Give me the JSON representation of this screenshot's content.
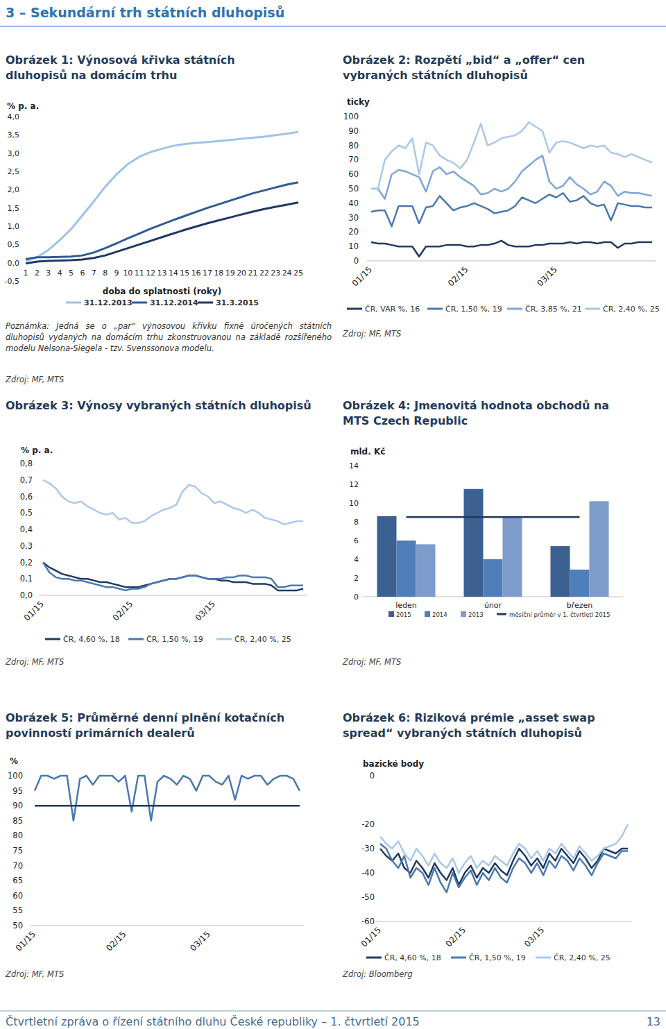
{
  "header": {
    "title": "3 – Sekundární trh státních dluhopisů"
  },
  "footer": {
    "text": "Čtvrtletní zpráva o řízení státního dluhu České republiky – 1. čtvrtletí 2015",
    "page": 13
  },
  "chart_data": [
    {
      "type": "line",
      "title": "Obrázek 1: Výnosová křivka státních\ndluhopisů na domácím trhu",
      "ylabel": "% p. a.",
      "xlabel": "doba do splatnosti (roky)",
      "note": "Poznámka: Jedná se o „par“ výnosovou křivku fixně úročených státních dluhopisů vydaných na domácím trhu zkonstruovanou na základě rozšířeného modelu Nelsona-Siegela - tzv. Svenssonova modelu.",
      "source": "Zdroj: MF, MTS",
      "x": [
        1,
        2,
        3,
        4,
        5,
        6,
        7,
        8,
        9,
        10,
        11,
        12,
        13,
        14,
        15,
        16,
        17,
        18,
        19,
        20,
        21,
        22,
        23,
        24,
        25
      ],
      "xlim": [
        1,
        25
      ],
      "xticks": [
        1,
        2,
        3,
        4,
        5,
        6,
        7,
        8,
        9,
        10,
        11,
        12,
        13,
        14,
        15,
        16,
        17,
        18,
        19,
        20,
        21,
        22,
        23,
        24,
        25
      ],
      "ylim": [
        -0.5,
        4
      ],
      "yticks": [
        {
          "value": -0.5,
          "label": "-0,5"
        },
        {
          "value": 0,
          "label": "0,0"
        },
        {
          "value": 0.5,
          "label": "0,5"
        },
        {
          "value": 1,
          "label": "1,0"
        },
        {
          "value": 1.5,
          "label": "1,5"
        },
        {
          "value": 2,
          "label": "2,0"
        },
        {
          "value": 2.5,
          "label": "2,5"
        },
        {
          "value": 3,
          "label": "3,0"
        },
        {
          "value": 3.5,
          "label": "3,5"
        },
        {
          "value": 4,
          "label": "4,0"
        }
      ],
      "grid": false,
      "legend": "bottom",
      "series": [
        {
          "name": "31.12.2013",
          "color": "#9dc3e6",
          "values": [
            0.05,
            0.15,
            0.35,
            0.62,
            0.92,
            1.3,
            1.68,
            2.08,
            2.42,
            2.7,
            2.9,
            3.03,
            3.12,
            3.2,
            3.25,
            3.28,
            3.3,
            3.33,
            3.36,
            3.39,
            3.42,
            3.45,
            3.49,
            3.53,
            3.58
          ]
        },
        {
          "name": "31.12.2014",
          "color": "#2e5b95",
          "values": [
            0.1,
            0.15,
            0.15,
            0.16,
            0.17,
            0.2,
            0.28,
            0.4,
            0.53,
            0.67,
            0.8,
            0.93,
            1.05,
            1.17,
            1.28,
            1.39,
            1.5,
            1.6,
            1.7,
            1.8,
            1.9,
            1.98,
            2.06,
            2.14,
            2.2
          ]
        },
        {
          "name": "31.3.2015",
          "color": "#1f3864",
          "values": [
            -0.02,
            0.03,
            0.05,
            0.06,
            0.07,
            0.09,
            0.13,
            0.2,
            0.3,
            0.4,
            0.5,
            0.6,
            0.7,
            0.8,
            0.9,
            0.99,
            1.08,
            1.16,
            1.24,
            1.32,
            1.4,
            1.47,
            1.53,
            1.59,
            1.65
          ]
        }
      ]
    },
    {
      "type": "line",
      "title": "Obrázek 2: Rozpětí „bid“ a „offer“ cen\nvybraných státních dluhopisů",
      "ylabel": "ticky",
      "source": "Zdroj: MF, MTS",
      "categories": [
        "01/15",
        null,
        null,
        null,
        null,
        null,
        null,
        null,
        null,
        null,
        null,
        null,
        null,
        null,
        "02/15",
        null,
        null,
        null,
        null,
        null,
        null,
        null,
        null,
        null,
        null,
        null,
        null,
        "03/15",
        null,
        null,
        null,
        null,
        null,
        null,
        null,
        null,
        null,
        null,
        null,
        null,
        null,
        null
      ],
      "ylim": [
        0,
        100
      ],
      "yticks": [
        0,
        10,
        20,
        30,
        40,
        50,
        60,
        70,
        80,
        90,
        100
      ],
      "grid": false,
      "legend": "bottom",
      "series": [
        {
          "name": "ČR, VAR %, 16",
          "color": "#1f3a60",
          "values": [
            13,
            12,
            12,
            11,
            10,
            10,
            10,
            3,
            10,
            10,
            10,
            11,
            11,
            11,
            10,
            10,
            11,
            11,
            12,
            14,
            11,
            10,
            10,
            10,
            11,
            11,
            12,
            12,
            12,
            13,
            12,
            13,
            13,
            12,
            13,
            13,
            9,
            12,
            12,
            13,
            13,
            13
          ]
        },
        {
          "name": "ČR, 1,50 %, 19",
          "color": "#4a78b0",
          "values": [
            34,
            35,
            35,
            24,
            38,
            38,
            38,
            26,
            37,
            38,
            45,
            40,
            35,
            37,
            38,
            40,
            38,
            36,
            33,
            34,
            35,
            38,
            44,
            42,
            40,
            43,
            46,
            44,
            47,
            41,
            42,
            45,
            40,
            38,
            39,
            28,
            40,
            39,
            38,
            38,
            37,
            37
          ]
        },
        {
          "name": "ČR, 3,85 %, 21",
          "color": "#7fa6d6",
          "values": [
            50,
            50,
            43,
            60,
            63,
            62,
            60,
            58,
            48,
            62,
            65,
            60,
            62,
            58,
            55,
            52,
            46,
            47,
            50,
            48,
            50,
            55,
            62,
            66,
            70,
            73,
            55,
            50,
            52,
            58,
            53,
            50,
            46,
            48,
            55,
            52,
            45,
            48,
            47,
            47,
            46,
            45
          ]
        },
        {
          "name": "ČR, 2,40 %, 25",
          "color": "#a9c8ea",
          "values": [
            50,
            50,
            70,
            76,
            80,
            78,
            85,
            60,
            82,
            80,
            73,
            70,
            68,
            64,
            70,
            82,
            95,
            80,
            82,
            85,
            86,
            87,
            90,
            96,
            93,
            90,
            75,
            82,
            83,
            82,
            80,
            78,
            80,
            79,
            80,
            75,
            74,
            72,
            74,
            72,
            70,
            68
          ]
        }
      ]
    },
    {
      "type": "line",
      "title": "Obrázek 3: Výnosy vybraných státních dluhopisů",
      "ylabel": "% p. a.",
      "source": "Zdroj: MF, MTS",
      "categories": [
        "01/15",
        null,
        null,
        null,
        null,
        null,
        null,
        null,
        null,
        null,
        null,
        null,
        null,
        null,
        "02/15",
        null,
        null,
        null,
        null,
        null,
        null,
        null,
        null,
        null,
        null,
        null,
        null,
        "03/15",
        null,
        null,
        null,
        null,
        null,
        null,
        null,
        null,
        null,
        null,
        null,
        null,
        null,
        null
      ],
      "ylim": [
        0,
        0.8
      ],
      "yticks": [
        {
          "value": 0,
          "label": "0,0"
        },
        {
          "value": 0.1,
          "label": "0,1"
        },
        {
          "value": 0.2,
          "label": "0,2"
        },
        {
          "value": 0.3,
          "label": "0,3"
        },
        {
          "value": 0.4,
          "label": "0,4"
        },
        {
          "value": 0.5,
          "label": "0,5"
        },
        {
          "value": 0.6,
          "label": "0,6"
        },
        {
          "value": 0.7,
          "label": "0,7"
        },
        {
          "value": 0.8,
          "label": "0,8"
        }
      ],
      "grid": false,
      "legend": "bottom",
      "series": [
        {
          "name": "ČR, 4,60 %, 18",
          "color": "#1f3a60",
          "values": [
            0.2,
            0.17,
            0.15,
            0.13,
            0.12,
            0.11,
            0.1,
            0.1,
            0.09,
            0.08,
            0.08,
            0.07,
            0.06,
            0.05,
            0.05,
            0.05,
            0.06,
            0.07,
            0.08,
            0.09,
            0.1,
            0.1,
            0.11,
            0.12,
            0.12,
            0.11,
            0.1,
            0.1,
            0.09,
            0.09,
            0.08,
            0.08,
            0.08,
            0.07,
            0.07,
            0.07,
            0.06,
            0.03,
            0.03,
            0.03,
            0.03,
            0.04
          ]
        },
        {
          "name": "ČR, 1,50 %, 19",
          "color": "#4a78b0",
          "values": [
            0.2,
            0.14,
            0.11,
            0.1,
            0.1,
            0.09,
            0.09,
            0.08,
            0.07,
            0.06,
            0.05,
            0.05,
            0.04,
            0.03,
            0.04,
            0.04,
            0.05,
            0.07,
            0.08,
            0.09,
            0.1,
            0.1,
            0.11,
            0.12,
            0.12,
            0.11,
            0.1,
            0.1,
            0.1,
            0.11,
            0.11,
            0.12,
            0.12,
            0.11,
            0.11,
            0.11,
            0.1,
            0.05,
            0.05,
            0.06,
            0.06,
            0.06
          ]
        },
        {
          "name": "ČR, 2,40 %, 25",
          "color": "#a9c8ea",
          "values": [
            0.7,
            0.68,
            0.65,
            0.6,
            0.57,
            0.56,
            0.57,
            0.54,
            0.52,
            0.5,
            0.49,
            0.5,
            0.46,
            0.47,
            0.44,
            0.44,
            0.45,
            0.48,
            0.5,
            0.52,
            0.53,
            0.55,
            0.63,
            0.67,
            0.66,
            0.62,
            0.6,
            0.56,
            0.57,
            0.55,
            0.53,
            0.52,
            0.5,
            0.52,
            0.5,
            0.47,
            0.46,
            0.45,
            0.43,
            0.44,
            0.45,
            0.45
          ]
        }
      ]
    },
    {
      "type": "bar",
      "title": "Obrázek 4: Jmenovitá hodnota obchodů na\nMTS Czech Republic",
      "ylabel": "mld. Kč",
      "source": "Zdroj: MF, MTS",
      "categories": [
        "leden",
        "únor",
        "březen"
      ],
      "ylim": [
        0,
        14
      ],
      "yticks": [
        0,
        2,
        4,
        6,
        8,
        10,
        12,
        14
      ],
      "grid": false,
      "legend": "bottom",
      "series": [
        {
          "name": "2015",
          "color": "#3a6190",
          "values": [
            8.6,
            11.5,
            5.4
          ]
        },
        {
          "name": "2014",
          "color": "#4f7fb8",
          "values": [
            6.0,
            4.0,
            2.9
          ]
        },
        {
          "name": "2013",
          "color": "#7d9ccb",
          "values": [
            5.6,
            8.5,
            10.2
          ]
        },
        {
          "name": "měsíční průměr v 1. čtvrtletí 2015",
          "type": "line",
          "color": "#1f3a60",
          "values": [
            8.5,
            8.5,
            8.5
          ]
        }
      ]
    },
    {
      "type": "line",
      "title": "Obrázek 5: Průměrné denní plnění kotačních\npovinností primárních dealerů",
      "ylabel": "%",
      "source": "Zdroj: MF, MTS",
      "categories": [
        "01/15",
        null,
        null,
        null,
        null,
        null,
        null,
        null,
        null,
        null,
        null,
        null,
        null,
        null,
        "02/15",
        null,
        null,
        null,
        null,
        null,
        null,
        null,
        null,
        null,
        null,
        null,
        null,
        "03/15",
        null,
        null,
        null,
        null,
        null,
        null,
        null,
        null,
        null,
        null,
        null,
        null,
        null,
        null
      ],
      "ylim": [
        50,
        100
      ],
      "yticks": [
        50,
        55,
        60,
        65,
        70,
        75,
        80,
        85,
        90,
        95,
        100
      ],
      "grid": false,
      "series": [
        {
          "color": "#4a78b0",
          "values": [
            95,
            100,
            100,
            99,
            100,
            100,
            85,
            99,
            100,
            97,
            100,
            100,
            100,
            98,
            100,
            88,
            100,
            100,
            85,
            98,
            100,
            99,
            97,
            100,
            99,
            95,
            100,
            100,
            98,
            97,
            100,
            92,
            100,
            99,
            100,
            100,
            97,
            99,
            100,
            100,
            99,
            95
          ]
        },
        {
          "color": "#1f3a60",
          "values": [
            90,
            90,
            90,
            90,
            90,
            90,
            90,
            90,
            90,
            90,
            90,
            90,
            90,
            90,
            90,
            90,
            90,
            90,
            90,
            90,
            90,
            90,
            90,
            90,
            90,
            90,
            90,
            90,
            90,
            90,
            90,
            90,
            90,
            90,
            90,
            90,
            90,
            90,
            90,
            90,
            90,
            90
          ]
        }
      ]
    },
    {
      "type": "line",
      "title": "Obrázek 6: Riziková prémie „asset swap\nspread“ vybraných státních dluhopisů",
      "ylabel": "bazické body",
      "source": "Zdroj: Bloomberg",
      "categories": [
        "01/15",
        null,
        null,
        null,
        null,
        null,
        null,
        null,
        null,
        null,
        null,
        null,
        null,
        null,
        "02/15",
        null,
        null,
        null,
        null,
        null,
        null,
        null,
        null,
        null,
        null,
        null,
        null,
        "03/15",
        null,
        null,
        null,
        null,
        null,
        null,
        null,
        null,
        null,
        null,
        null,
        null,
        null,
        null
      ],
      "ylim": [
        -60,
        0
      ],
      "yticks": [
        0,
        -20,
        -30,
        -40,
        -50,
        -60
      ],
      "grid": false,
      "legend": "bottom",
      "series": [
        {
          "name": "ČR, 4,60 %, 18",
          "color": "#1f3a60",
          "values": [
            -30,
            -33,
            -35,
            -32,
            -38,
            -40,
            -35,
            -38,
            -42,
            -36,
            -40,
            -43,
            -38,
            -45,
            -40,
            -37,
            -42,
            -38,
            -40,
            -36,
            -39,
            -41,
            -35,
            -30,
            -33,
            -37,
            -34,
            -38,
            -32,
            -35,
            -30,
            -33,
            -36,
            -31,
            -34,
            -38,
            -35,
            -30,
            -31,
            -32,
            -30,
            -30
          ]
        },
        {
          "name": "ČR, 1,50 %, 19",
          "color": "#4a78b0",
          "values": [
            -28,
            -30,
            -35,
            -38,
            -33,
            -42,
            -38,
            -40,
            -45,
            -38,
            -44,
            -48,
            -40,
            -46,
            -42,
            -39,
            -45,
            -40,
            -43,
            -38,
            -42,
            -44,
            -38,
            -34,
            -36,
            -40,
            -36,
            -41,
            -35,
            -38,
            -33,
            -35,
            -39,
            -34,
            -37,
            -41,
            -36,
            -32,
            -33,
            -34,
            -31,
            -31
          ]
        },
        {
          "name": "ČR, 2,40 %, 25",
          "color": "#a9c8ea",
          "values": [
            -25,
            -28,
            -30,
            -27,
            -32,
            -35,
            -30,
            -33,
            -37,
            -32,
            -36,
            -38,
            -34,
            -40,
            -36,
            -33,
            -38,
            -35,
            -37,
            -33,
            -35,
            -37,
            -32,
            -28,
            -30,
            -34,
            -31,
            -35,
            -30,
            -32,
            -28,
            -31,
            -34,
            -29,
            -32,
            -35,
            -33,
            -30,
            -29,
            -28,
            -25,
            -20
          ]
        }
      ]
    }
  ]
}
